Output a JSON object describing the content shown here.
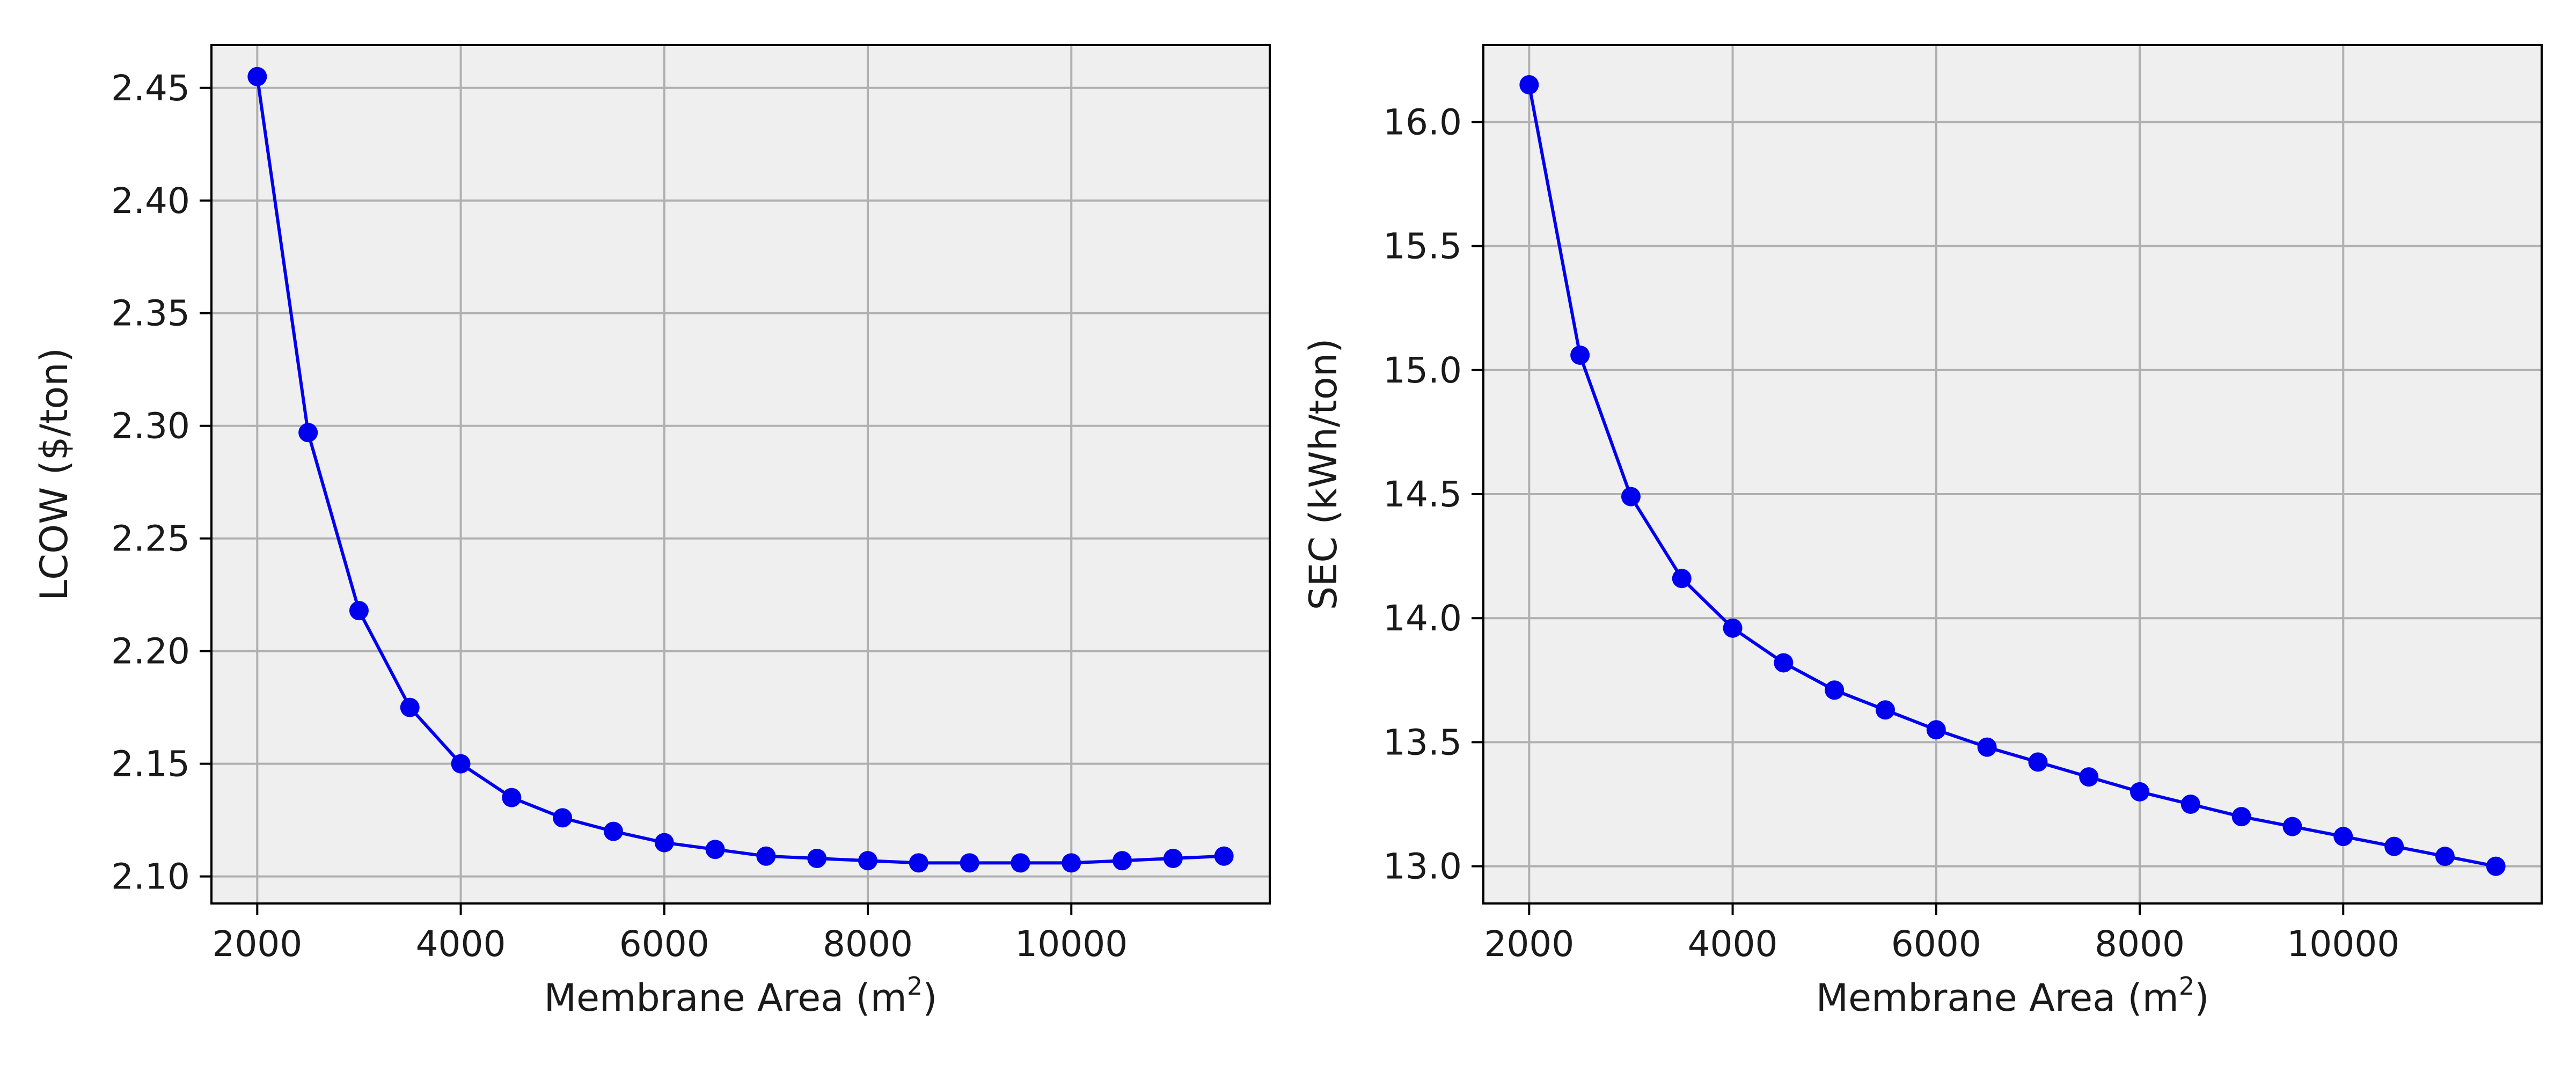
{
  "figure": {
    "background": "#ffffff"
  },
  "chart_data": [
    {
      "type": "line",
      "xlabel_text": "Membrane Area (m",
      "xlabel_sup": "2",
      "xlabel_close": ")",
      "ylabel": "LCOW ($/ton)",
      "xlim": [
        1550,
        11950
      ],
      "ylim": [
        2.088,
        2.469
      ],
      "xticks": [
        2000,
        4000,
        6000,
        8000,
        10000
      ],
      "xtick_labels": [
        "2000",
        "4000",
        "6000",
        "8000",
        "10000"
      ],
      "yticks": [
        2.1,
        2.15,
        2.2,
        2.25,
        2.3,
        2.35,
        2.4,
        2.45
      ],
      "ytick_labels": [
        "2.10",
        "2.15",
        "2.20",
        "2.25",
        "2.30",
        "2.35",
        "2.40",
        "2.45"
      ],
      "grid": true,
      "plot_background": "#efefef",
      "grid_color": "#b0b0b0",
      "series": [
        {
          "color": "#0000ee",
          "marker": "circle",
          "x": [
            2000,
            2500,
            3000,
            3500,
            4000,
            4500,
            5000,
            5500,
            6000,
            6500,
            7000,
            7500,
            8000,
            8500,
            9000,
            9500,
            10000,
            10500,
            11000,
            11500
          ],
          "y": [
            2.455,
            2.297,
            2.218,
            2.175,
            2.15,
            2.135,
            2.126,
            2.12,
            2.115,
            2.112,
            2.109,
            2.108,
            2.107,
            2.106,
            2.106,
            2.106,
            2.106,
            2.107,
            2.108,
            2.109
          ]
        }
      ]
    },
    {
      "type": "line",
      "xlabel_text": "Membrane Area (m",
      "xlabel_sup": "2",
      "xlabel_close": ")",
      "ylabel": "SEC (kWh/ton)",
      "xlim": [
        1550,
        11950
      ],
      "ylim": [
        12.85,
        16.31
      ],
      "xticks": [
        2000,
        4000,
        6000,
        8000,
        10000
      ],
      "xtick_labels": [
        "2000",
        "4000",
        "6000",
        "8000",
        "10000"
      ],
      "yticks": [
        13.0,
        13.5,
        14.0,
        14.5,
        15.0,
        15.5,
        16.0
      ],
      "ytick_labels": [
        "13.0",
        "13.5",
        "14.0",
        "14.5",
        "15.0",
        "15.5",
        "16.0"
      ],
      "grid": true,
      "plot_background": "#efefef",
      "grid_color": "#b0b0b0",
      "series": [
        {
          "color": "#0000ee",
          "marker": "circle",
          "x": [
            2000,
            2500,
            3000,
            3500,
            4000,
            4500,
            5000,
            5500,
            6000,
            6500,
            7000,
            7500,
            8000,
            8500,
            9000,
            9500,
            10000,
            10500,
            11000,
            11500
          ],
          "y": [
            16.15,
            15.06,
            14.49,
            14.16,
            13.96,
            13.82,
            13.71,
            13.63,
            13.55,
            13.48,
            13.42,
            13.36,
            13.3,
            13.25,
            13.2,
            13.16,
            13.12,
            13.08,
            13.04,
            13.0
          ]
        }
      ]
    }
  ]
}
